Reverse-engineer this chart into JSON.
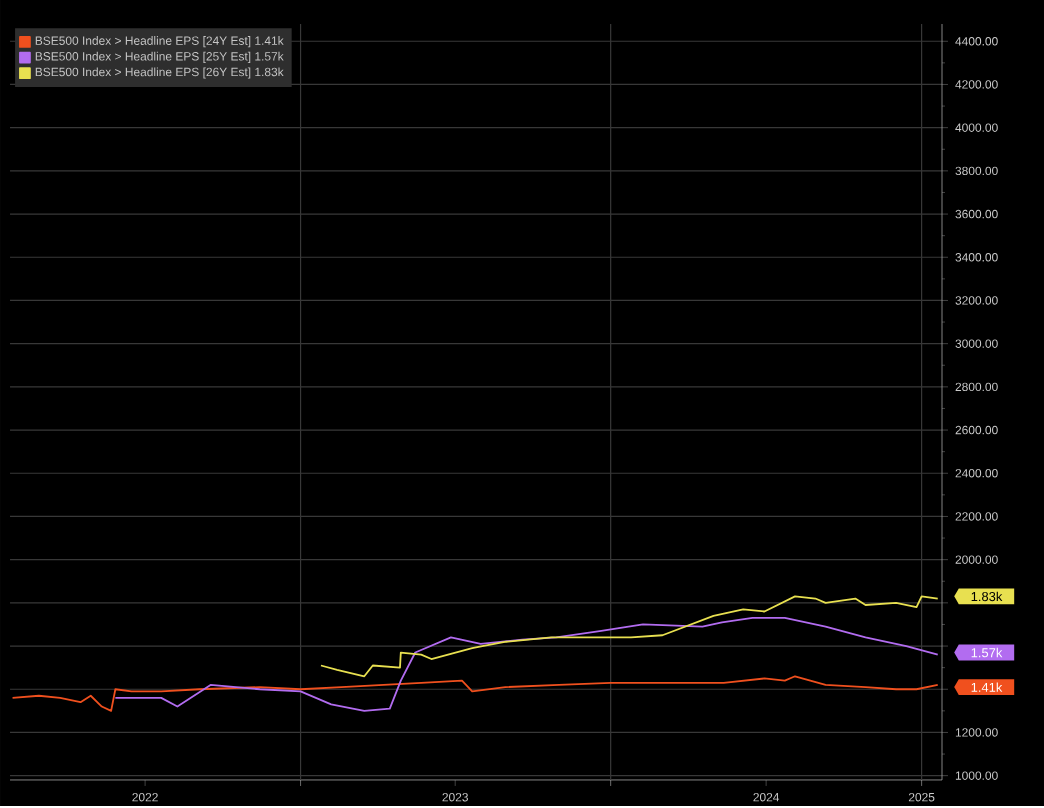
{
  "chart_data": {
    "type": "line",
    "xlim": [
      "2022-01-24",
      "2025-01-25"
    ],
    "xticks": [
      {
        "value": "2022-07-02",
        "label": "2022"
      },
      {
        "value": "2023-01-01",
        "label": null
      },
      {
        "value": "2023-07-02",
        "label": "2023"
      },
      {
        "value": "2024-01-01",
        "label": null
      },
      {
        "value": "2024-07-02",
        "label": "2024"
      },
      {
        "value": "2025-01-01",
        "label": "2025"
      }
    ],
    "ylim": [
      980,
      4480
    ],
    "yticks": [
      {
        "value": 1000,
        "label": "1000.00"
      },
      {
        "value": 1200,
        "label": "1200.00"
      },
      {
        "value": 1400,
        "label": null
      },
      {
        "value": 1600,
        "label": null
      },
      {
        "value": 1800,
        "label": null
      },
      {
        "value": 2000,
        "label": "2000.00"
      },
      {
        "value": 2200,
        "label": "2200.00"
      },
      {
        "value": 2400,
        "label": "2400.00"
      },
      {
        "value": 2600,
        "label": "2600.00"
      },
      {
        "value": 2800,
        "label": "2800.00"
      },
      {
        "value": 3000,
        "label": "3000.00"
      },
      {
        "value": 3200,
        "label": "3200.00"
      },
      {
        "value": 3400,
        "label": "3400.00"
      },
      {
        "value": 3600,
        "label": "3600.00"
      },
      {
        "value": 3800,
        "label": "3800.00"
      },
      {
        "value": 4000,
        "label": "4000.00"
      },
      {
        "value": 4200,
        "label": "4200.00"
      },
      {
        "value": 4400,
        "label": "4400.00"
      }
    ],
    "grid": true,
    "legend": "top left",
    "series": [
      {
        "name": "BSE500 Index > Headline EPS [24Y Est] 1.41k",
        "color": "#f0501e",
        "x": [
          "2022-01-27",
          "2022-02-27",
          "2022-03-24",
          "2022-04-17",
          "2022-04-29",
          "2022-05-12",
          "2022-05-23",
          "2022-05-28",
          "2022-06-16",
          "2022-07-21",
          "2022-09-04",
          "2022-11-14",
          "2023-01-01",
          "2023-02-18",
          "2023-05-23",
          "2023-07-10",
          "2023-07-22",
          "2023-08-30",
          "2023-11-01",
          "2024-01-01",
          "2024-05-13",
          "2024-06-30",
          "2024-07-24",
          "2024-08-05",
          "2024-09-10",
          "2024-10-27",
          "2024-12-02",
          "2024-12-26",
          "2025-01-20"
        ],
        "values": [
          1360,
          1370,
          1360,
          1340,
          1370,
          1320,
          1300,
          1400,
          1390,
          1390,
          1400,
          1410,
          1400,
          1410,
          1430,
          1440,
          1390,
          1410,
          1420,
          1430,
          1430,
          1450,
          1440,
          1460,
          1420,
          1410,
          1400,
          1400,
          1420
        ]
      },
      {
        "name": "BSE500 Index > Headline EPS [25Y Est] 1.57k",
        "color": "#b26cf0",
        "x": [
          "2022-05-28",
          "2022-07-21",
          "2022-08-09",
          "2022-09-17",
          "2022-11-14",
          "2023-01-01",
          "2023-02-06",
          "2023-03-17",
          "2023-04-16",
          "2023-04-29",
          "2023-05-16",
          "2023-06-27",
          "2023-08-01",
          "2023-09-19",
          "2023-10-29",
          "2023-12-21",
          "2024-02-08",
          "2024-04-18",
          "2024-05-11",
          "2024-06-16",
          "2024-07-24",
          "2024-09-10",
          "2024-10-27",
          "2024-12-14",
          "2025-01-20"
        ],
        "values": [
          1360,
          1360,
          1320,
          1420,
          1400,
          1390,
          1330,
          1300,
          1310,
          1440,
          1570,
          1640,
          1610,
          1630,
          1640,
          1670,
          1700,
          1690,
          1710,
          1730,
          1730,
          1690,
          1640,
          1600,
          1560
        ]
      },
      {
        "name": "BSE500 Index > Headline EPS [26Y Est] 1.83k",
        "color": "#e8e050",
        "x": [
          "2023-01-25",
          "2023-02-13",
          "2023-03-17",
          "2023-03-27",
          "2023-04-28",
          "2023-04-29",
          "2023-05-23",
          "2023-06-04",
          "2023-07-22",
          "2023-08-03",
          "2023-08-31",
          "2023-10-23",
          "2023-11-29",
          "2024-01-25",
          "2024-03-02",
          "2024-05-01",
          "2024-06-05",
          "2024-06-30",
          "2024-08-05",
          "2024-08-29",
          "2024-09-10",
          "2024-10-15",
          "2024-10-27",
          "2024-12-02",
          "2024-12-26",
          "2025-01-01",
          "2025-01-20"
        ],
        "values": [
          1510,
          1490,
          1460,
          1510,
          1500,
          1570,
          1560,
          1540,
          1590,
          1600,
          1620,
          1640,
          1640,
          1640,
          1650,
          1740,
          1770,
          1760,
          1830,
          1820,
          1800,
          1820,
          1790,
          1800,
          1780,
          1830,
          1820
        ]
      }
    ],
    "annotations": [
      {
        "text": "1.41k",
        "x": "2025-01-20",
        "y": 1410
      },
      {
        "text": "1.57k",
        "x": "2025-01-20",
        "y": 1570
      },
      {
        "text": "1.83k",
        "x": "2025-01-20",
        "y": 1830
      }
    ]
  }
}
